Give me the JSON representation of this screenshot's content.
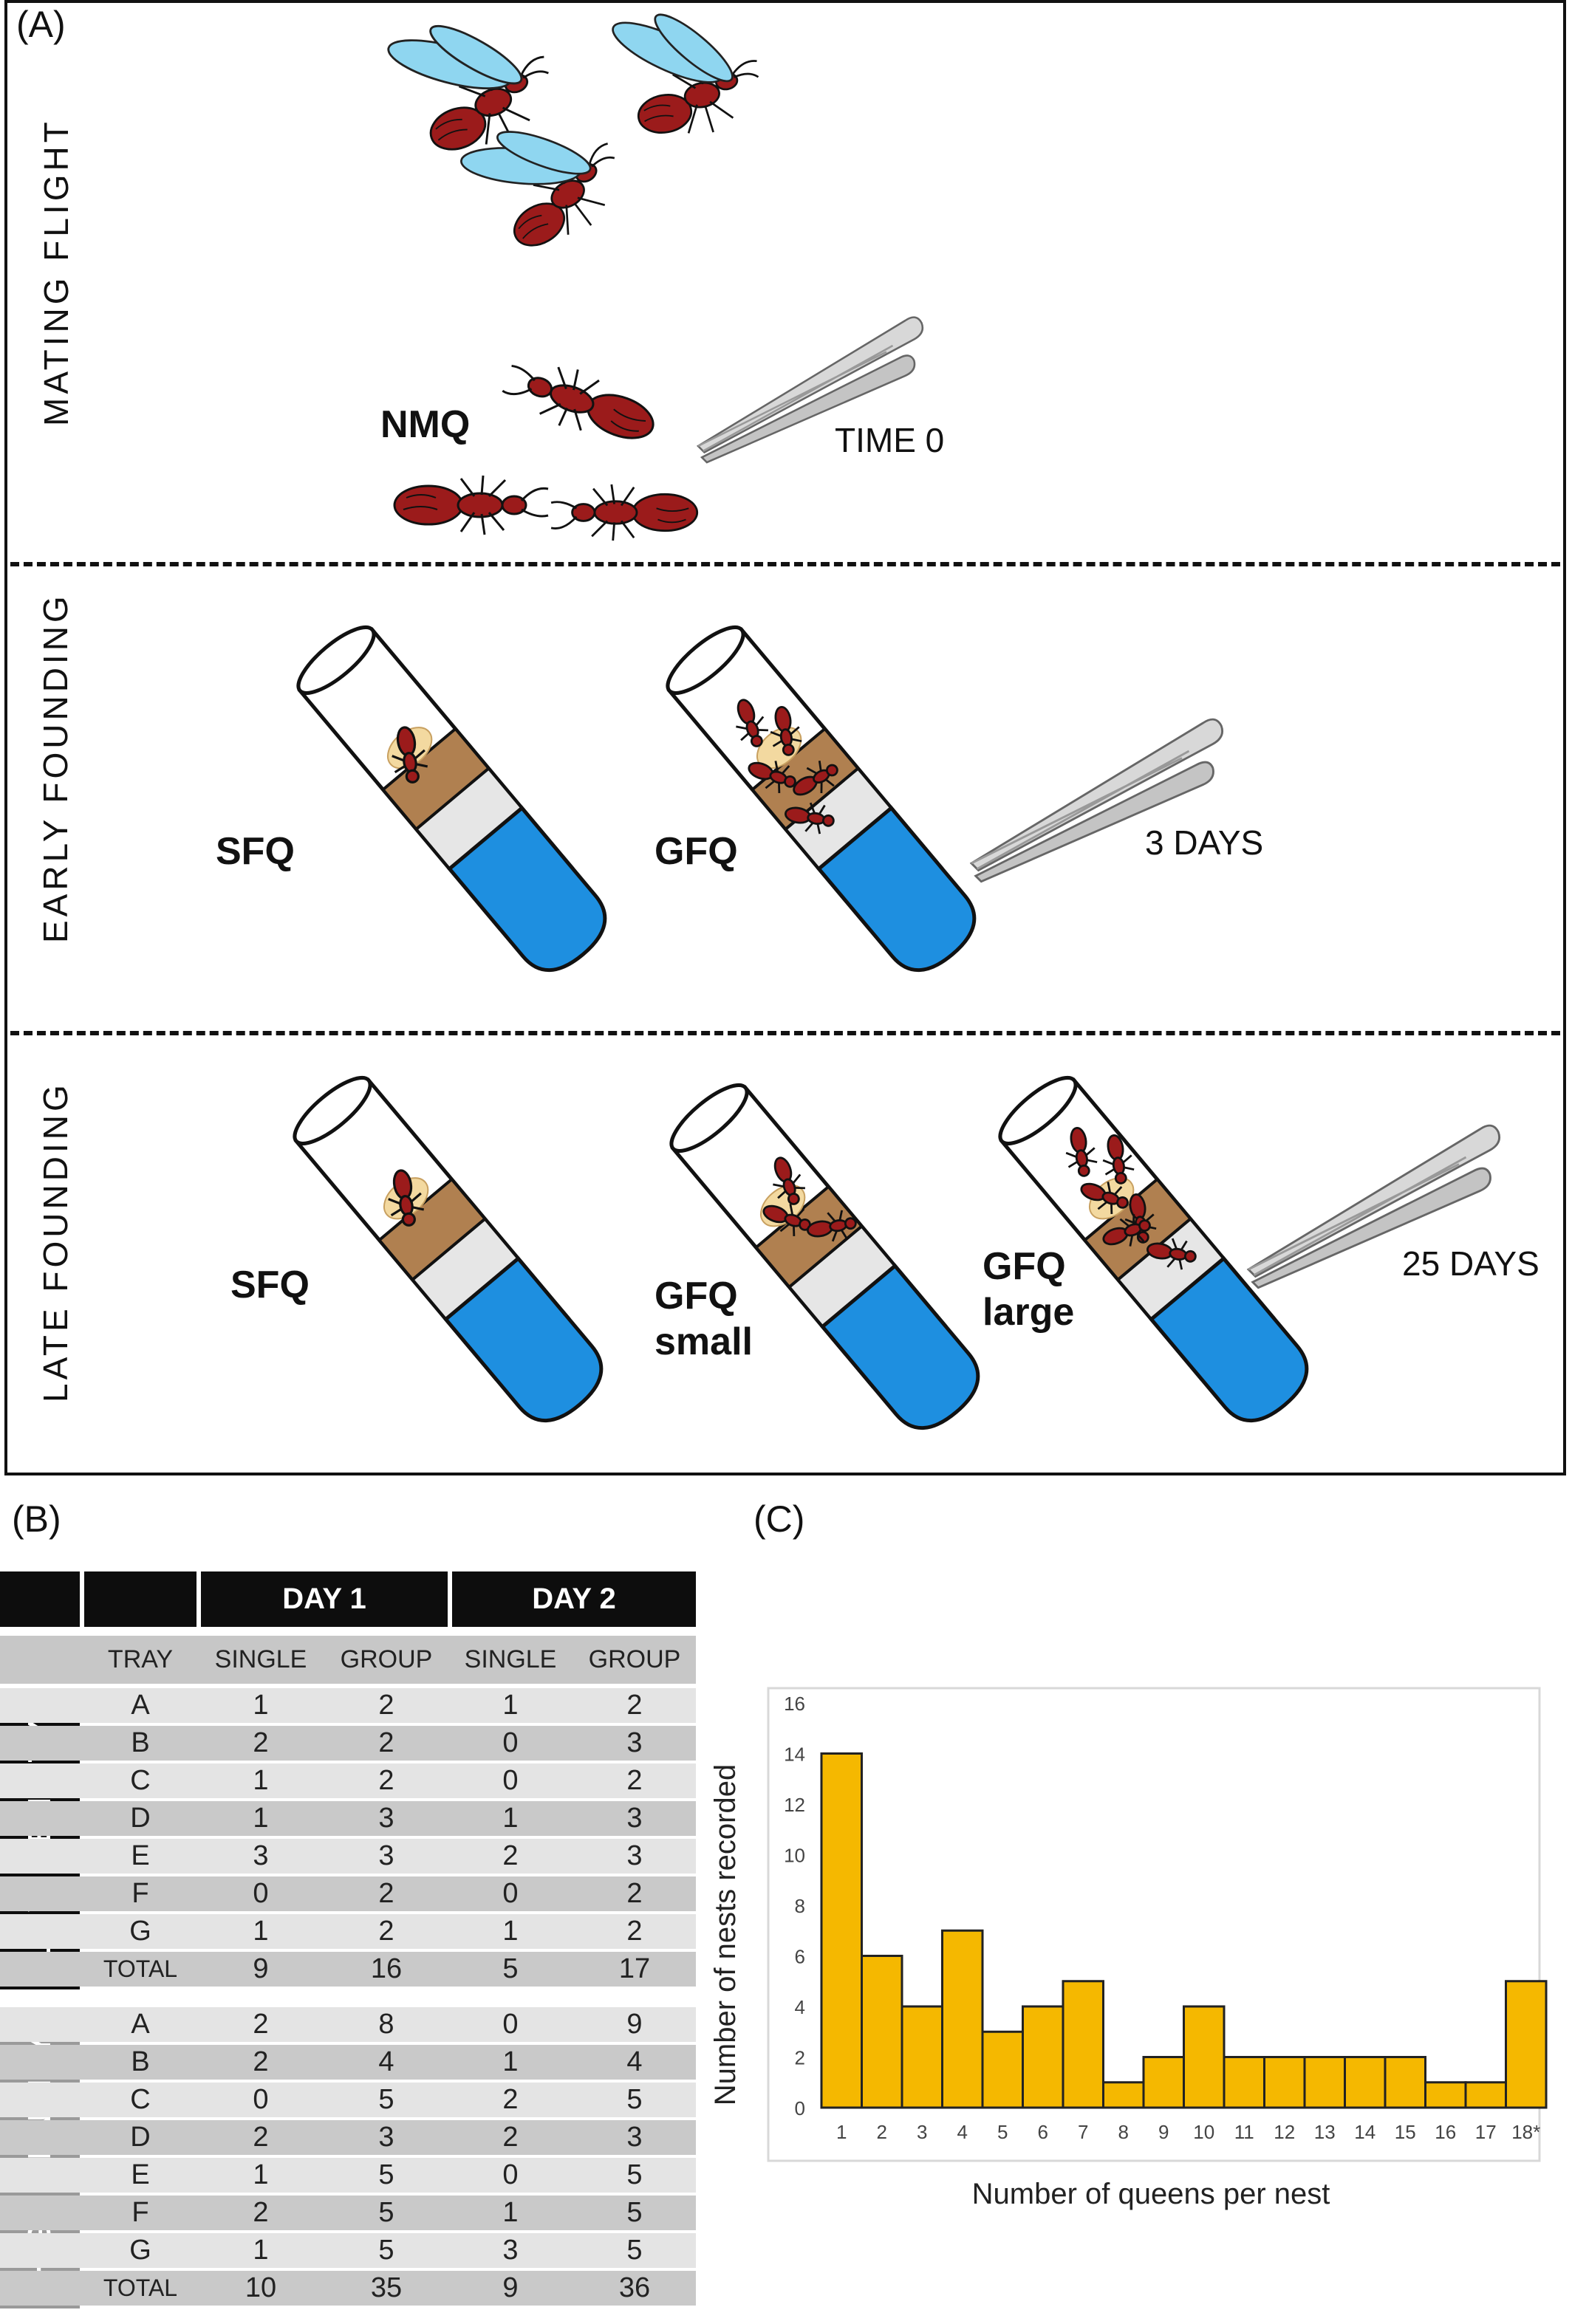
{
  "panel_a": {
    "letter": "(A)",
    "stages": [
      {
        "label": "MATING FLIGHT",
        "tags": [
          "NMQ"
        ],
        "time": "TIME 0"
      },
      {
        "label": "EARLY FOUNDING",
        "tags": [
          "SFQ",
          "GFQ"
        ],
        "time": "3 DAYS"
      },
      {
        "label": "LATE FOUNDING",
        "tags": [
          "SFQ",
          "GFQ small",
          "GFQ large"
        ],
        "time": "25 DAYS"
      }
    ],
    "illustrations": [
      "winged-ant-icon",
      "queen-ant-icon",
      "tweezers-icon",
      "test-tube-nest-icon"
    ]
  },
  "panel_b": {
    "letter": "(B)",
    "header_day1": "DAY 1",
    "header_day2": "DAY 2",
    "columns": [
      "TRAY",
      "SINGLE",
      "GROUP",
      "SINGLE",
      "GROUP"
    ],
    "groups": [
      {
        "label": "LOW DENSITY",
        "rows": [
          [
            "A",
            "1",
            "2",
            "1",
            "2"
          ],
          [
            "B",
            "2",
            "2",
            "0",
            "3"
          ],
          [
            "C",
            "1",
            "2",
            "0",
            "2"
          ],
          [
            "D",
            "1",
            "3",
            "1",
            "3"
          ],
          [
            "E",
            "3",
            "3",
            "2",
            "3"
          ],
          [
            "F",
            "0",
            "2",
            "0",
            "2"
          ],
          [
            "G",
            "1",
            "2",
            "1",
            "2"
          ],
          [
            "TOTAL",
            "9",
            "16",
            "5",
            "17"
          ]
        ]
      },
      {
        "label": "HIGH DENSITY",
        "rows": [
          [
            "A",
            "2",
            "8",
            "0",
            "9"
          ],
          [
            "B",
            "2",
            "4",
            "1",
            "4"
          ],
          [
            "C",
            "0",
            "5",
            "2",
            "5"
          ],
          [
            "D",
            "2",
            "3",
            "2",
            "3"
          ],
          [
            "E",
            "1",
            "5",
            "0",
            "5"
          ],
          [
            "F",
            "2",
            "5",
            "1",
            "5"
          ],
          [
            "G",
            "1",
            "5",
            "3",
            "5"
          ],
          [
            "TOTAL",
            "10",
            "35",
            "9",
            "36"
          ]
        ]
      }
    ]
  },
  "panel_c": {
    "letter": "(C)"
  },
  "chart_data": {
    "type": "bar",
    "title": "",
    "xlabel": "Number of queens per nest",
    "ylabel": "Number of nests recorded",
    "categories": [
      "1",
      "2",
      "3",
      "4",
      "5",
      "6",
      "7",
      "8",
      "9",
      "10",
      "11",
      "12",
      "13",
      "14",
      "15",
      "16",
      "17",
      "18*"
    ],
    "values": [
      14,
      6,
      4,
      7,
      3,
      4,
      5,
      1,
      2,
      4,
      2,
      2,
      2,
      2,
      2,
      1,
      1,
      5
    ],
    "yticks": [
      0,
      2,
      4,
      6,
      8,
      10,
      12,
      14,
      16
    ],
    "ylim": [
      0,
      16
    ],
    "grid": false,
    "bar_color": "#f5b800",
    "bar_edge_color": "#222222"
  }
}
